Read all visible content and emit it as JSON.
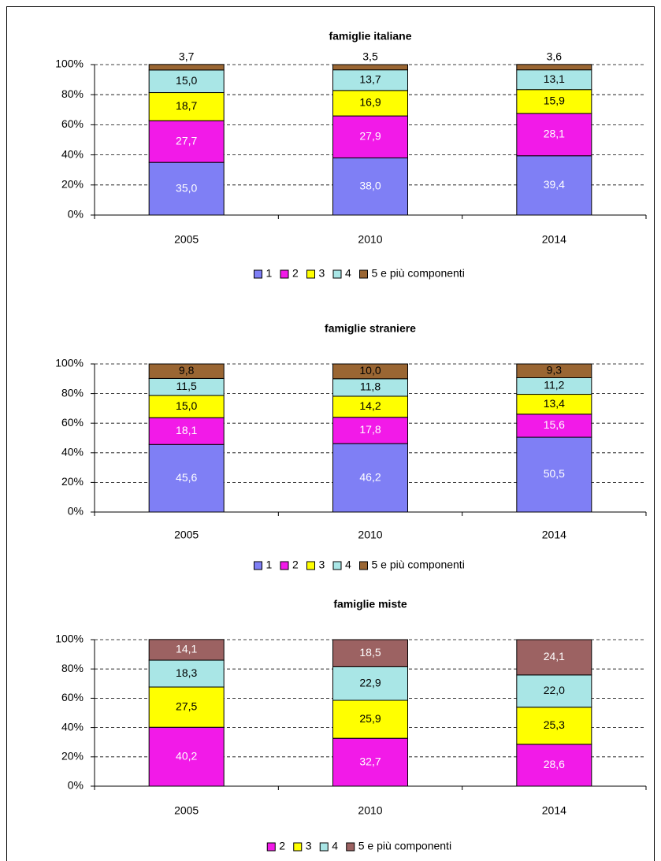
{
  "chart_data": [
    {
      "type": "stacked_bar",
      "title": "famiglie italiane",
      "categories": [
        "2005",
        "2010",
        "2014"
      ],
      "series": [
        {
          "name": "1",
          "color": "#7f7ff5",
          "label_color": "#ffffff",
          "values": [
            35.0,
            38.0,
            39.4
          ],
          "value_labels": [
            "35,0",
            "38,0",
            "39,4"
          ]
        },
        {
          "name": "2",
          "color": "#f21ae8",
          "label_color": "#ffffff",
          "values": [
            27.7,
            27.9,
            28.1
          ],
          "value_labels": [
            "27,7",
            "27,9",
            "28,1"
          ]
        },
        {
          "name": "3",
          "color": "#ffff00",
          "label_color": "#000000",
          "values": [
            18.7,
            16.9,
            15.9
          ],
          "value_labels": [
            "18,7",
            "16,9",
            "15,9"
          ]
        },
        {
          "name": "4",
          "color": "#a9e6e6",
          "label_color": "#000000",
          "values": [
            15.0,
            13.7,
            13.1
          ],
          "value_labels": [
            "15,0",
            "13,7",
            "13,1"
          ]
        },
        {
          "name": "5 e più componenti",
          "color": "#9a6633",
          "label_color": "#000000",
          "values": [
            3.7,
            3.5,
            3.6
          ],
          "value_labels": [
            "3,7",
            "3,5",
            "3,6"
          ]
        }
      ],
      "ylim": [
        0,
        100
      ],
      "yticks": [
        {
          "value": 0,
          "label": "0%"
        },
        {
          "value": 20,
          "label": "20%"
        },
        {
          "value": 40,
          "label": "40%"
        },
        {
          "value": 60,
          "label": "60%"
        },
        {
          "value": 80,
          "label": "80%"
        },
        {
          "value": 100,
          "label": "100%"
        }
      ],
      "grid": true,
      "legend": "bottom"
    },
    {
      "type": "stacked_bar",
      "title": "famiglie straniere",
      "categories": [
        "2005",
        "2010",
        "2014"
      ],
      "series": [
        {
          "name": "1",
          "color": "#7f7ff5",
          "label_color": "#ffffff",
          "values": [
            45.6,
            46.2,
            50.5
          ],
          "value_labels": [
            "45,6",
            "46,2",
            "50,5"
          ]
        },
        {
          "name": "2",
          "color": "#f21ae8",
          "label_color": "#ffffff",
          "values": [
            18.1,
            17.8,
            15.6
          ],
          "value_labels": [
            "18,1",
            "17,8",
            "15,6"
          ]
        },
        {
          "name": "3",
          "color": "#ffff00",
          "label_color": "#000000",
          "values": [
            15.0,
            14.2,
            13.4
          ],
          "value_labels": [
            "15,0",
            "14,2",
            "13,4"
          ]
        },
        {
          "name": "4",
          "color": "#a9e6e6",
          "label_color": "#000000",
          "values": [
            11.5,
            11.8,
            11.2
          ],
          "value_labels": [
            "11,5",
            "11,8",
            "11,2"
          ]
        },
        {
          "name": "5 e più componenti",
          "color": "#9a6633",
          "label_color": "#000000",
          "values": [
            9.8,
            10.0,
            9.3
          ],
          "value_labels": [
            "9,8",
            "10,0",
            "9,3"
          ]
        }
      ],
      "ylim": [
        0,
        100
      ],
      "yticks": [
        {
          "value": 0,
          "label": "0%"
        },
        {
          "value": 20,
          "label": "20%"
        },
        {
          "value": 40,
          "label": "40%"
        },
        {
          "value": 60,
          "label": "60%"
        },
        {
          "value": 80,
          "label": "80%"
        },
        {
          "value": 100,
          "label": "100%"
        }
      ],
      "grid": true,
      "legend": "bottom"
    },
    {
      "type": "stacked_bar",
      "title": "famiglie miste",
      "categories": [
        "2005",
        "2010",
        "2014"
      ],
      "series": [
        {
          "name": "2",
          "color": "#f21ae8",
          "label_color": "#ffffff",
          "values": [
            40.2,
            32.7,
            28.6
          ],
          "value_labels": [
            "40,2",
            "32,7",
            "28,6"
          ]
        },
        {
          "name": "3",
          "color": "#ffff00",
          "label_color": "#000000",
          "values": [
            27.5,
            25.9,
            25.3
          ],
          "value_labels": [
            "27,5",
            "25,9",
            "25,3"
          ]
        },
        {
          "name": "4",
          "color": "#a9e6e6",
          "label_color": "#000000",
          "values": [
            18.3,
            22.9,
            22.0
          ],
          "value_labels": [
            "18,3",
            "22,9",
            "22,0"
          ]
        },
        {
          "name": "5 e più componenti",
          "color": "#9c6262",
          "label_color": "#ffffff",
          "values": [
            14.1,
            18.5,
            24.1
          ],
          "value_labels": [
            "14,1",
            "18,5",
            "24,1"
          ]
        }
      ],
      "ylim": [
        0,
        100
      ],
      "yticks": [
        {
          "value": 0,
          "label": "0%"
        },
        {
          "value": 20,
          "label": "20%"
        },
        {
          "value": 40,
          "label": "40%"
        },
        {
          "value": 60,
          "label": "60%"
        },
        {
          "value": 80,
          "label": "80%"
        },
        {
          "value": 100,
          "label": "100%"
        }
      ],
      "grid": true,
      "legend": "bottom"
    }
  ]
}
